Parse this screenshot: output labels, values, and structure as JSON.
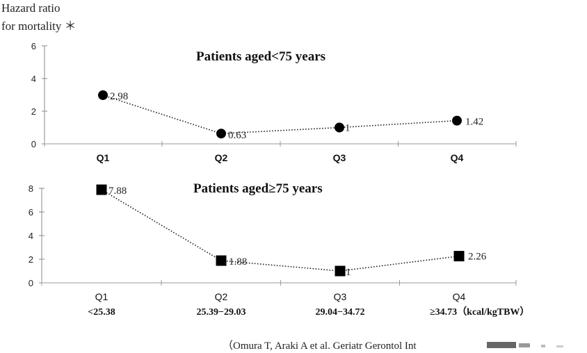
{
  "y_title_line1": "Hazard ratio",
  "y_title_line2": "for mortality ＊",
  "citation": "（Omura T, Araki  A   et al. Geriatr Gerontol Int",
  "chart_data": [
    {
      "type": "line",
      "title": "Patients aged<75 years",
      "categories": [
        "Q1",
        "Q2",
        "Q3",
        "Q4"
      ],
      "category_ranges": [],
      "y_ticks": [
        "0",
        "2",
        "4",
        "6"
      ],
      "ylim": [
        0,
        6
      ],
      "marker": "circle",
      "values": [
        2.98,
        0.63,
        1,
        1.42
      ],
      "data_labels": [
        "2.98",
        "0.63",
        "1",
        "1.42"
      ],
      "grid": false
    },
    {
      "type": "line",
      "title": "Patients aged≥75 years",
      "categories": [
        "Q1",
        "Q2",
        "Q3",
        "Q4"
      ],
      "category_ranges": [
        "<25.38",
        "25.39−29.03",
        "29.04−34.72",
        "≥34.73（kcal/kgTBW）"
      ],
      "y_ticks": [
        "0",
        "2",
        "4",
        "6",
        "8"
      ],
      "ylim": [
        0,
        8
      ],
      "marker": "square",
      "values": [
        7.88,
        1.88,
        1,
        2.26
      ],
      "data_labels": [
        "7.88",
        "1.88",
        "1",
        "2.26"
      ],
      "grid": false
    }
  ]
}
